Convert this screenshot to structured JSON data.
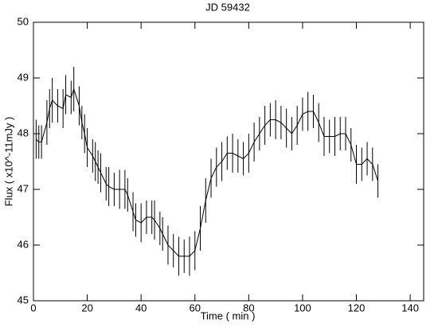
{
  "chart_data": {
    "type": "line",
    "title": "JD 59432",
    "xlabel": "Time ( min )",
    "ylabel": "Flux ( x10^-11mJy )",
    "x": [
      1,
      2,
      3,
      5,
      6,
      7,
      9,
      11,
      12,
      14,
      15,
      17,
      18,
      19,
      20,
      22,
      23,
      24,
      25,
      27,
      28,
      30,
      32,
      34,
      35,
      37,
      38,
      40,
      42,
      44,
      45,
      47,
      48,
      50,
      52,
      54,
      56,
      58,
      60,
      62,
      64,
      66,
      68,
      70,
      72,
      74,
      76,
      78,
      80,
      82,
      84,
      86,
      88,
      90,
      92,
      94,
      96,
      98,
      100,
      102,
      104,
      106,
      108,
      110,
      112,
      114,
      116,
      118,
      120,
      122,
      124,
      126,
      128
    ],
    "values": [
      47.9,
      47.85,
      47.85,
      48.2,
      48.45,
      48.6,
      48.5,
      48.45,
      48.7,
      48.65,
      48.8,
      48.5,
      48.2,
      48.0,
      47.75,
      47.6,
      47.5,
      47.4,
      47.3,
      47.1,
      47.05,
      47.0,
      47.0,
      47.0,
      46.9,
      46.6,
      46.45,
      46.4,
      46.5,
      46.5,
      46.45,
      46.3,
      46.2,
      46.0,
      45.9,
      45.8,
      45.8,
      45.8,
      45.9,
      46.3,
      46.8,
      47.2,
      47.4,
      47.5,
      47.65,
      47.65,
      47.6,
      47.55,
      47.65,
      47.85,
      48.0,
      48.15,
      48.25,
      48.25,
      48.2,
      48.1,
      48.0,
      48.15,
      48.35,
      48.4,
      48.4,
      48.2,
      47.95,
      47.95,
      47.95,
      48.0,
      48.0,
      47.8,
      47.45,
      47.45,
      47.55,
      47.45,
      47.15
    ],
    "errors": [
      0.35,
      0.3,
      0.3,
      0.4,
      0.35,
      0.4,
      0.3,
      0.35,
      0.35,
      0.3,
      0.4,
      0.35,
      0.3,
      0.35,
      0.35,
      0.3,
      0.35,
      0.3,
      0.35,
      0.3,
      0.35,
      0.3,
      0.35,
      0.35,
      0.3,
      0.35,
      0.3,
      0.35,
      0.3,
      0.3,
      0.35,
      0.3,
      0.3,
      0.35,
      0.3,
      0.35,
      0.3,
      0.35,
      0.35,
      0.4,
      0.4,
      0.35,
      0.35,
      0.35,
      0.3,
      0.35,
      0.3,
      0.3,
      0.35,
      0.35,
      0.3,
      0.35,
      0.3,
      0.35,
      0.3,
      0.35,
      0.3,
      0.35,
      0.3,
      0.35,
      0.3,
      0.35,
      0.35,
      0.3,
      0.35,
      0.3,
      0.3,
      0.3,
      0.35,
      0.3,
      0.3,
      0.3,
      0.3
    ],
    "color": "#000000",
    "xlim": [
      0,
      145
    ],
    "ylim": [
      45,
      50
    ],
    "xticks": [
      0,
      20,
      40,
      60,
      80,
      100,
      120,
      140
    ],
    "yticks": [
      45,
      46,
      47,
      48,
      49,
      50
    ]
  }
}
